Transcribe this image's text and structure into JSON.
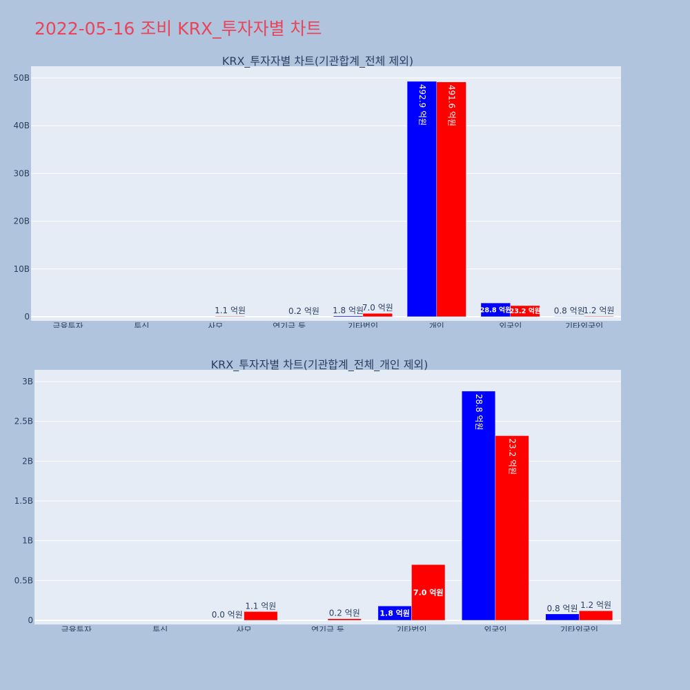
{
  "page": {
    "title": "2022-05-16 조비 KRX_투자자별 차트"
  },
  "colors": {
    "background": "#b0c4de",
    "plot_bg": "#e5ecf6",
    "title": "#e8445a",
    "series_a": "#0000ff",
    "series_b": "#ff0000",
    "text": "#2a3f5f"
  },
  "chart_data": [
    {
      "type": "bar",
      "title": "KRX_투자자별 차트(기관합계_전체 제외)",
      "categories": [
        "금융투자",
        "투신",
        "사모",
        "연기금 등",
        "기타법인",
        "개인",
        "외국인",
        "기타외국인"
      ],
      "series": [
        {
          "color": "#0000ff",
          "values": [
            0,
            0,
            0,
            0,
            0.18,
            49.29,
            2.88,
            0.08
          ],
          "labels": [
            "",
            "",
            "",
            "",
            "1.8 억원",
            "492.9 억원",
            "28.8 억원",
            "0.8 억원"
          ]
        },
        {
          "color": "#ff0000",
          "values": [
            0,
            0,
            0.11,
            0.02,
            0.7,
            49.16,
            2.32,
            0.12
          ],
          "labels": [
            "",
            "",
            "1.1 억원",
            "0.2 억원",
            "7.0 억원",
            "491.6 억원",
            "23.2 억원",
            "1.2 억원"
          ]
        }
      ],
      "ylim": [
        0,
        50
      ],
      "yticks": [
        0,
        10,
        20,
        30,
        40,
        50
      ],
      "ytick_labels": [
        "0",
        "10B",
        "20B",
        "30B",
        "40B",
        "50B"
      ],
      "grid": true
    },
    {
      "type": "bar",
      "title": "KRX_투자자별 차트(기관합계_전체_개인 제외)",
      "categories": [
        "금융투자",
        "투신",
        "사모",
        "연기금 등",
        "기타법인",
        "외국인",
        "기타외국인"
      ],
      "series": [
        {
          "color": "#0000ff",
          "values": [
            0,
            0,
            0.0,
            0,
            0.18,
            2.88,
            0.08
          ],
          "labels": [
            "",
            "",
            "0.0 억원",
            "",
            "1.8 억원",
            "28.8 억원",
            "0.8 억원"
          ]
        },
        {
          "color": "#ff0000",
          "values": [
            0,
            0,
            0.11,
            0.02,
            0.7,
            2.32,
            0.12
          ],
          "labels": [
            "",
            "",
            "1.1 억원",
            "0.2 억원",
            "7.0 억원",
            "23.2 억원",
            "1.2 억원"
          ]
        }
      ],
      "ylim": [
        0,
        3
      ],
      "yticks": [
        0,
        0.5,
        1,
        1.5,
        2,
        2.5,
        3
      ],
      "ytick_labels": [
        "0",
        "0.5B",
        "1B",
        "1.5B",
        "2B",
        "2.5B",
        "3B"
      ],
      "grid": true
    }
  ]
}
